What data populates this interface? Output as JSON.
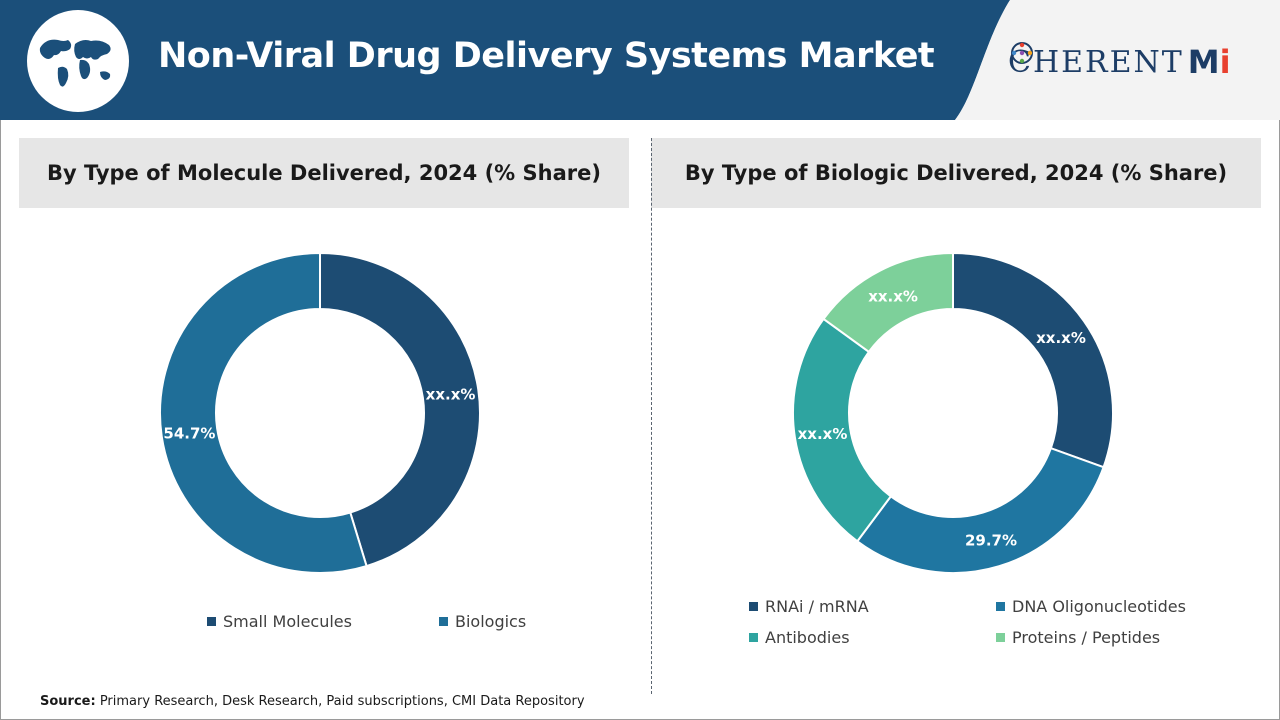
{
  "header": {
    "title": "Non-Viral Drug Delivery Systems Market",
    "logo_text_main": "C",
    "logo_text_rest": "HERENT",
    "logo_mi_m": "M",
    "logo_mi_i": "i",
    "bg_color": "#1b4f7a"
  },
  "source": {
    "label": "Source:",
    "text": " Primary Research, Desk Research, Paid subscriptions, CMI Data Repository"
  },
  "chart_data": [
    {
      "type": "pie",
      "title": "By Type of Molecule Delivered, 2024 (% Share)",
      "categories": [
        "Small Molecules",
        "Biologics"
      ],
      "values": [
        45.3,
        54.7
      ],
      "labels": [
        "xx.x%",
        "54.7%"
      ],
      "colors": [
        "#1d4c73",
        "#1f6e98"
      ],
      "legend_position": "bottom"
    },
    {
      "type": "pie",
      "title": "By Type of Biologic Delivered, 2024 (% Share)",
      "categories": [
        "RNAi / mRNA",
        "DNA Oligonucleotides",
        "Antibodies",
        "Proteins / Peptides"
      ],
      "values": [
        30.5,
        29.7,
        24.8,
        15.0
      ],
      "labels": [
        "xx.x%",
        "29.7%",
        "xx.x%",
        "xx.x%"
      ],
      "colors": [
        "#1d4c73",
        "#1f76a1",
        "#2ea4a0",
        "#7dd09a"
      ],
      "legend_position": "bottom"
    }
  ]
}
